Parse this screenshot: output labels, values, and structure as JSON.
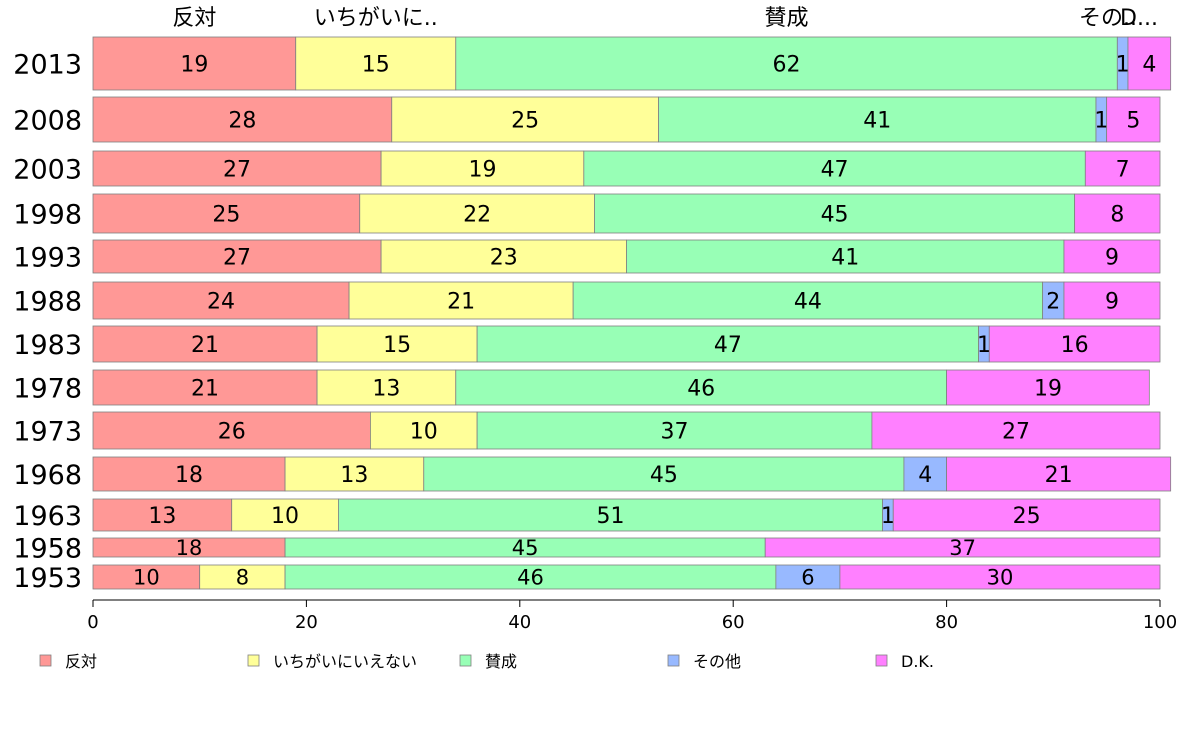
{
  "chart_data": {
    "type": "bar",
    "orientation": "horizontal",
    "stacked": true,
    "categories": [
      "2013",
      "2008",
      "2003",
      "1998",
      "1993",
      "1988",
      "1983",
      "1978",
      "1973",
      "1968",
      "1963",
      "1958",
      "1953"
    ],
    "series": [
      {
        "name": "反対",
        "color": "#ff9896",
        "values": [
          19,
          28,
          27,
          25,
          27,
          24,
          21,
          21,
          26,
          18,
          13,
          18,
          10
        ]
      },
      {
        "name": "いちがいにいえない",
        "color": "#ffff99",
        "values": [
          15,
          25,
          19,
          22,
          23,
          21,
          15,
          13,
          10,
          13,
          10,
          0,
          8
        ]
      },
      {
        "name": "賛成",
        "color": "#98ffb6",
        "values": [
          62,
          41,
          47,
          45,
          41,
          44,
          47,
          46,
          37,
          45,
          51,
          45,
          46
        ]
      },
      {
        "name": "その他",
        "color": "#98b9ff",
        "values": [
          1,
          1,
          0,
          0,
          0,
          2,
          1,
          0,
          0,
          4,
          1,
          0,
          6
        ]
      },
      {
        "name": "D.K.",
        "color": "#ff80ff",
        "values": [
          4,
          5,
          7,
          8,
          9,
          9,
          16,
          19,
          27,
          21,
          25,
          37,
          30
        ]
      }
    ],
    "top_labels": [
      "反対",
      "いちがいに..",
      "賛成",
      "その..",
      "D..."
    ],
    "x_ticks": [
      "0",
      "20",
      "40",
      "60",
      "80",
      "100"
    ],
    "xlim": [
      0,
      100
    ],
    "legend_position": "bottom"
  }
}
